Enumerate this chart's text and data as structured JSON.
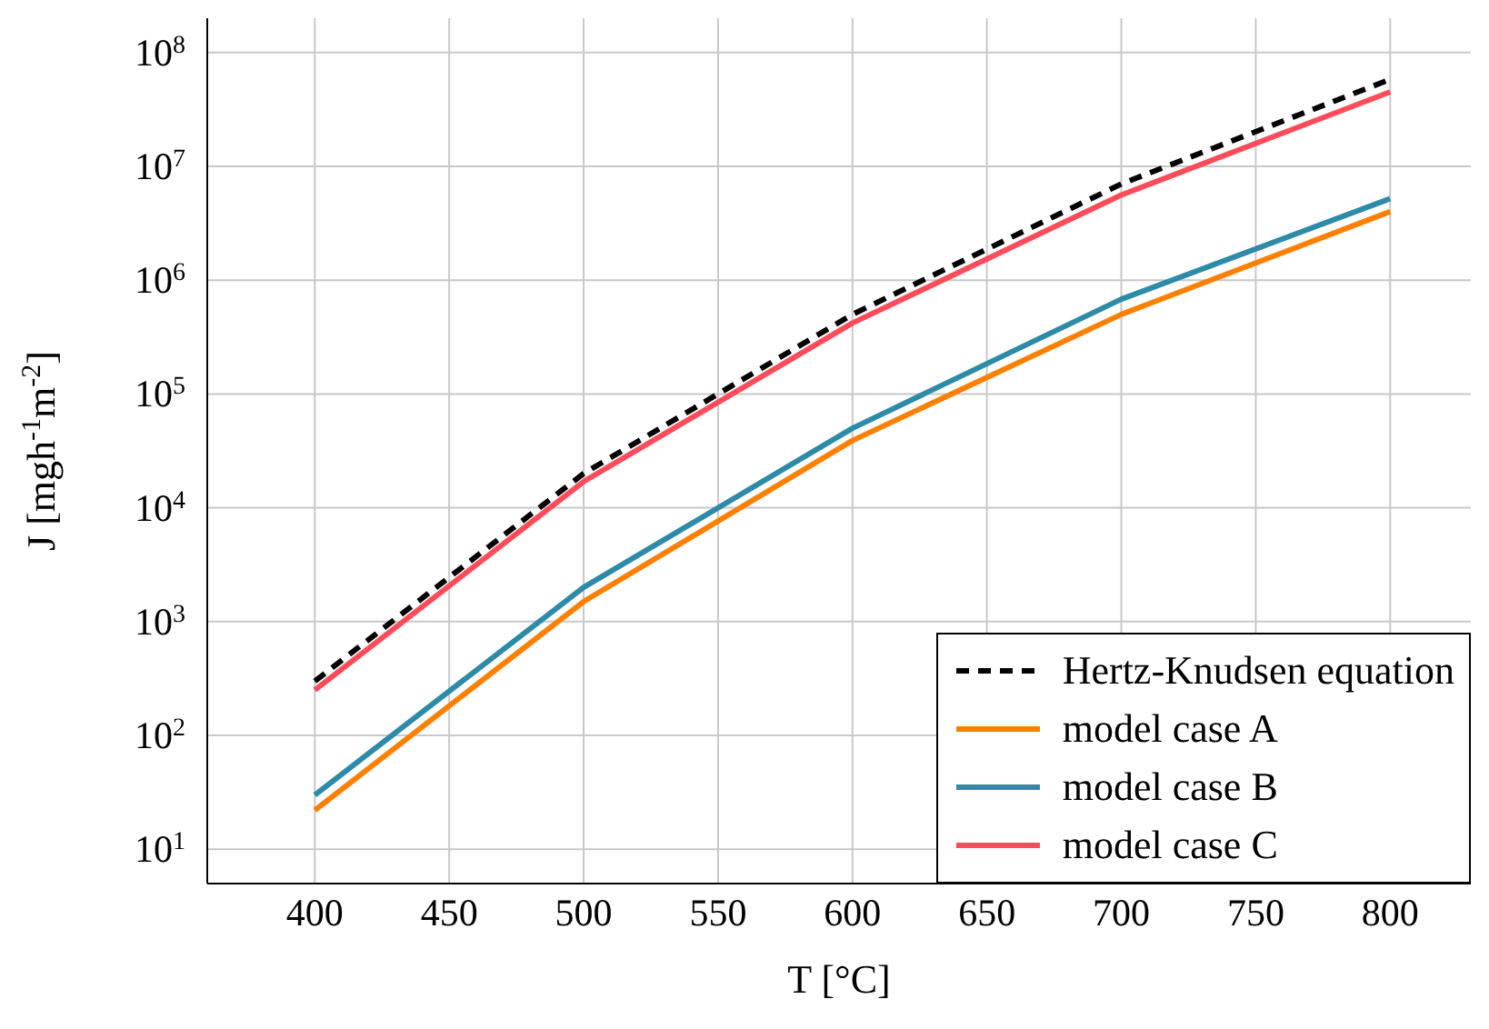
{
  "chart_data": {
    "type": "line",
    "xlabel": "T [°C]",
    "ylabel": "J [mgh$^{-1}$m$^{-2}$]",
    "x": [
      400,
      500,
      600,
      700,
      800
    ],
    "series": [
      {
        "name": "Hertz-Knudsen equation",
        "color": "#000000",
        "line_style": "dashed",
        "values": [
          300,
          20000,
          500000,
          7000000,
          58000000
        ]
      },
      {
        "name": "model case A",
        "color": "#ff8000",
        "values": [
          22,
          1500,
          39000,
          500000,
          4000000
        ]
      },
      {
        "name": "model case B",
        "color": "#2e8ba8",
        "values": [
          30,
          2000,
          50000,
          680000,
          5200000
        ]
      },
      {
        "name": "model case C",
        "color": "#ff4b5a",
        "values": [
          250,
          17000,
          420000,
          5600000,
          45000000
        ]
      }
    ],
    "xlim": [
      360,
      830
    ],
    "xticks": [
      400,
      450,
      500,
      550,
      600,
      650,
      700,
      750,
      800
    ],
    "log": "y",
    "ylim": [
      5,
      200000000
    ],
    "yticks": [
      {
        "value": 10,
        "label": "10$^{1}$"
      },
      {
        "value": 100,
        "label": "10$^{2}$"
      },
      {
        "value": 1000,
        "label": "10$^{3}$"
      },
      {
        "value": 10000,
        "label": "10$^{4}$"
      },
      {
        "value": 100000,
        "label": "10$^{5}$"
      },
      {
        "value": 1000000,
        "label": "10$^{6}$"
      },
      {
        "value": 10000000,
        "label": "10$^{7}$"
      },
      {
        "value": 100000000,
        "label": "10$^{8}$"
      }
    ],
    "grid": true,
    "legend": "bottom right",
    "line_style": "solid",
    "marker": "none"
  }
}
